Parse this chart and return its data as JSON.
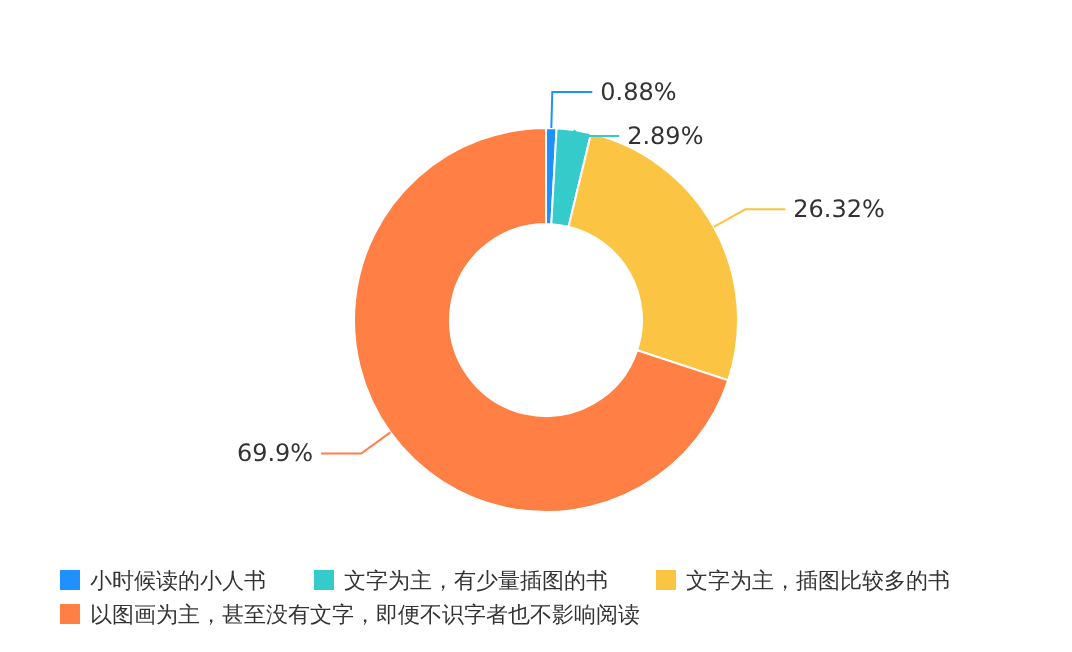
{
  "chart_data": {
    "type": "donut",
    "categories": [
      "小时候读的小人书",
      "文字为主，有少量插图的书",
      "文字为主，插图比较多的书",
      "以图画为主，甚至没有文字，即便不识字者也不影响阅读"
    ],
    "values": [
      0.88,
      2.89,
      26.32,
      69.9
    ],
    "colors": [
      "#1e90ff",
      "#36cbcb",
      "#fbc543",
      "#ff7f45"
    ],
    "value_labels": [
      "0.88%",
      "2.89%",
      "26.32%",
      "69.9%"
    ],
    "legend": "bottom"
  }
}
